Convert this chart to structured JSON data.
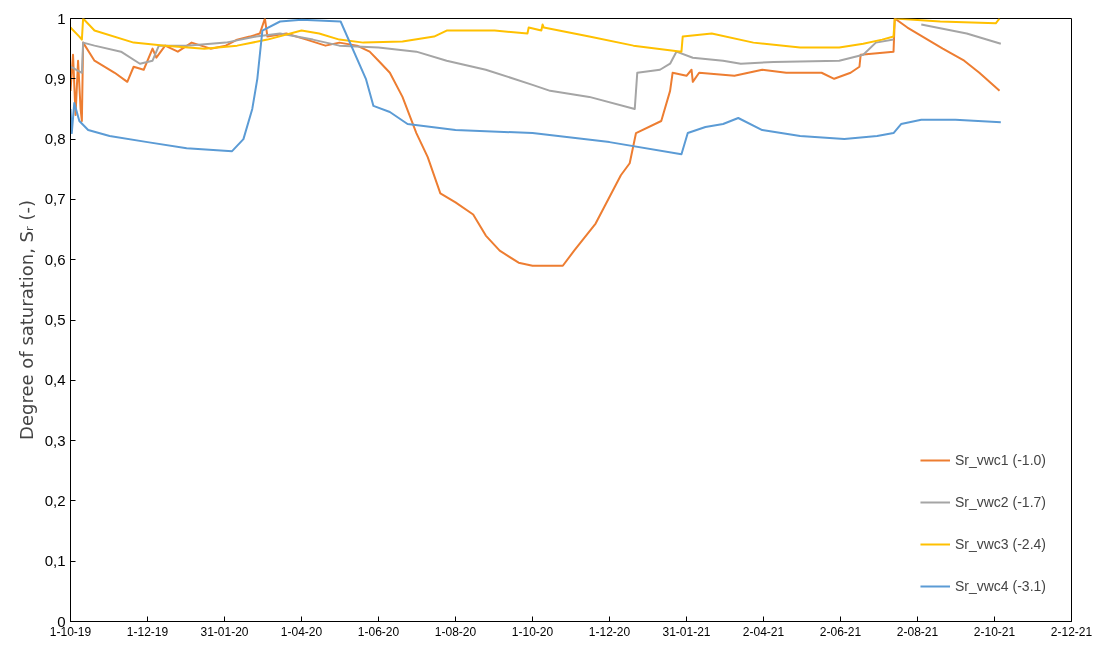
{
  "chart_data": {
    "type": "line",
    "ylabel": "Degree of saturation, Sᵣ (-)",
    "xlim": [
      "2019-10-01",
      "2021-12-02"
    ],
    "xticks": [
      {
        "value": "2019-10-01",
        "label": "1-10-19"
      },
      {
        "value": "2019-12-01",
        "label": "1-12-19"
      },
      {
        "value": "2020-01-31",
        "label": "31-01-20"
      },
      {
        "value": "2020-04-01",
        "label": "1-04-20"
      },
      {
        "value": "2020-06-01",
        "label": "1-06-20"
      },
      {
        "value": "2020-08-01",
        "label": "1-08-20"
      },
      {
        "value": "2020-10-01",
        "label": "1-10-20"
      },
      {
        "value": "2020-12-01",
        "label": "1-12-20"
      },
      {
        "value": "2021-01-31",
        "label": "31-01-21"
      },
      {
        "value": "2021-04-02",
        "label": "2-04-21"
      },
      {
        "value": "2021-06-02",
        "label": "2-06-21"
      },
      {
        "value": "2021-08-02",
        "label": "2-08-21"
      },
      {
        "value": "2021-10-02",
        "label": "2-10-21"
      },
      {
        "value": "2021-12-02",
        "label": "2-12-21"
      }
    ],
    "ylim": [
      0,
      1
    ],
    "yticks": [
      0,
      {
        "value": 0.1,
        "label": "0,1"
      },
      {
        "value": 0.2,
        "label": "0,2"
      },
      {
        "value": 0.3,
        "label": "0,3"
      },
      {
        "value": 0.4,
        "label": "0,4"
      },
      {
        "value": 0.5,
        "label": "0,5"
      },
      {
        "value": 0.6,
        "label": "0,6"
      },
      {
        "value": 0.7,
        "label": "0,7"
      },
      {
        "value": 0.8,
        "label": "0,8"
      },
      {
        "value": 0.9,
        "label": "0,9"
      },
      1
    ],
    "grid": false,
    "legend": "bottom right",
    "marker": "none",
    "line_style": "solid",
    "series": [
      {
        "name": "Sr_vwc1 (-1.0)",
        "color": "#ed7d31",
        "x": [
          "2019-10-01",
          "2019-10-03",
          "2019-10-05",
          "2019-10-07",
          "2019-10-09",
          "2019-10-10",
          "2019-10-11",
          "2019-10-20",
          "2019-11-05",
          "2019-11-15",
          "2019-11-20",
          "2019-11-28",
          "2019-12-05",
          "2019-12-08",
          "2019-12-15",
          "2019-12-25",
          "2020-01-05",
          "2020-01-20",
          "2020-02-01",
          "2020-02-10",
          "2020-02-20",
          "2020-02-28",
          "2020-03-03",
          "2020-03-05",
          "2020-03-20",
          "2020-04-05",
          "2020-04-20",
          "2020-05-01",
          "2020-05-15",
          "2020-05-25",
          "2020-06-01",
          "2020-06-10",
          "2020-06-20",
          "2020-07-01",
          "2020-07-10",
          "2020-07-20",
          "2020-08-01",
          "2020-08-15",
          "2020-08-25",
          "2020-09-05",
          "2020-09-20",
          "2020-10-01",
          "2020-10-15",
          "2020-10-25",
          "2020-11-03",
          "2020-11-20",
          "2020-12-10",
          "2020-12-17",
          "2020-12-22",
          "2021-01-11",
          "2021-01-18",
          "2021-01-20",
          "2021-01-31",
          "2021-02-04",
          "2021-02-05",
          "2021-02-10",
          "2021-03-10",
          "2021-04-01",
          "2021-04-20",
          "2021-05-18",
          "2021-05-28",
          "2021-06-10",
          "2021-06-17",
          "2021-06-18",
          "2021-07-14",
          "2021-07-15",
          "2021-07-25",
          "2021-08-22",
          "2021-09-08",
          "2021-09-20",
          "2021-10-06"
        ],
        "values": [
          0.88,
          0.94,
          0.84,
          0.93,
          0.85,
          0.83,
          0.96,
          0.93,
          0.91,
          0.895,
          0.92,
          0.915,
          0.95,
          0.935,
          0.955,
          0.945,
          0.96,
          0.95,
          0.955,
          0.965,
          0.97,
          0.975,
          1.0,
          0.97,
          0.975,
          0.965,
          0.955,
          0.96,
          0.955,
          0.945,
          0.93,
          0.91,
          0.87,
          0.81,
          0.77,
          0.71,
          0.695,
          0.675,
          0.64,
          0.615,
          0.595,
          0.59,
          0.59,
          0.59,
          0.615,
          0.66,
          0.74,
          0.76,
          0.81,
          0.83,
          0.88,
          0.91,
          0.905,
          0.915,
          0.895,
          0.91,
          0.905,
          0.915,
          0.91,
          0.91,
          0.9,
          0.91,
          0.92,
          0.94,
          0.945,
          1.0,
          0.985,
          0.95,
          0.93,
          0.91,
          0.88
        ]
      },
      {
        "name": "Sr_vwc2 (-1.7)",
        "color": "#a5a5a5",
        "x": [
          "2019-10-01",
          "2019-10-10",
          "2019-10-11",
          "2019-10-20",
          "2019-11-10",
          "2019-11-25",
          "2019-12-05",
          "2019-12-10",
          "2020-01-01",
          "2020-02-01",
          "2020-02-25",
          "2020-03-15",
          "2020-04-10",
          "2020-05-01",
          "2020-06-01",
          "2020-07-01",
          "2020-07-25",
          "2020-08-25",
          "2020-10-01",
          "2020-10-15",
          "2020-11-15",
          "2020-12-21",
          "2020-12-23",
          "2021-01-10",
          "2021-01-18",
          "2021-01-23",
          "2021-02-05",
          "2021-03-01",
          "2021-03-15",
          "2021-04-10",
          "2021-06-01",
          "2021-06-20",
          "2021-06-30",
          "2021-07-14",
          "2021-07-15",
          "2021-08-05",
          "2021-09-10",
          "2021-10-07"
        ],
        "values": [
          0.92,
          0.91,
          0.96,
          0.955,
          0.945,
          0.925,
          0.93,
          0.955,
          0.955,
          0.96,
          0.97,
          0.975,
          0.965,
          0.955,
          0.952,
          0.945,
          0.93,
          0.915,
          0.89,
          0.88,
          0.87,
          0.85,
          0.91,
          0.915,
          0.925,
          0.945,
          0.935,
          0.93,
          0.925,
          0.928,
          0.93,
          0.94,
          0.96,
          0.965,
          null,
          0.99,
          0.975,
          0.958
        ]
      },
      {
        "name": "Sr_vwc3 (-2.4)",
        "color": "#ffc000",
        "x": [
          "2019-10-01",
          "2019-10-08",
          "2019-10-10",
          "2019-10-11",
          "2019-10-20",
          "2019-11-20",
          "2019-12-15",
          "2020-01-15",
          "2020-02-10",
          "2020-03-05",
          "2020-04-01",
          "2020-04-15",
          "2020-05-01",
          "2020-05-20",
          "2020-06-20",
          "2020-07-15",
          "2020-07-25",
          "2020-09-01",
          "2020-09-27",
          "2020-09-28",
          "2020-10-08",
          "2020-10-09",
          "2020-10-10",
          "2020-11-15",
          "2020-12-20",
          "2021-01-27",
          "2021-01-28",
          "2021-02-20",
          "2021-03-25",
          "2021-05-01",
          "2021-06-01",
          "2021-06-20",
          "2021-07-05",
          "2021-07-14",
          "2021-07-15",
          "2021-08-20",
          "2021-10-03",
          "2021-10-06"
        ],
        "values": [
          0.985,
          0.97,
          0.965,
          1.0,
          0.98,
          0.96,
          0.955,
          0.95,
          0.955,
          0.965,
          0.98,
          0.975,
          0.965,
          0.96,
          0.962,
          0.97,
          0.98,
          0.98,
          0.975,
          0.985,
          0.98,
          0.99,
          0.985,
          0.97,
          0.955,
          0.945,
          0.97,
          0.975,
          0.96,
          0.952,
          0.952,
          0.958,
          0.965,
          0.97,
          1.0,
          0.995,
          0.992,
          1.0
        ]
      },
      {
        "name": "Sr_vwc4 (-3.1)",
        "color": "#5b9bd5",
        "x": [
          "2019-10-01",
          "2019-10-02",
          "2019-10-04",
          "2019-10-08",
          "2019-10-15",
          "2019-11-01",
          "2019-12-01",
          "2020-01-01",
          "2020-02-06",
          "2020-02-15",
          "2020-02-22",
          "2020-02-26",
          "2020-03-01",
          "2020-03-15",
          "2020-04-01",
          "2020-05-02",
          "2020-05-22",
          "2020-05-28",
          "2020-06-10",
          "2020-06-24",
          "2020-08-01",
          "2020-10-01",
          "2020-12-01",
          "2021-01-27",
          "2021-02-01",
          "2021-02-15",
          "2021-03-01",
          "2021-03-13",
          "2021-04-01",
          "2021-05-01",
          "2021-06-05",
          "2021-07-01",
          "2021-07-14",
          "2021-07-20",
          "2021-08-05",
          "2021-09-01",
          "2021-10-07"
        ],
        "values": [
          0.85,
          0.81,
          0.86,
          0.83,
          0.815,
          0.805,
          0.795,
          0.785,
          0.78,
          0.8,
          0.85,
          0.9,
          0.98,
          0.995,
          0.998,
          0.995,
          0.9,
          0.855,
          0.845,
          0.825,
          0.815,
          0.81,
          0.795,
          0.775,
          0.81,
          0.82,
          0.825,
          0.835,
          0.815,
          0.805,
          0.8,
          0.805,
          0.81,
          0.825,
          0.832,
          0.832,
          0.828
        ]
      }
    ]
  }
}
